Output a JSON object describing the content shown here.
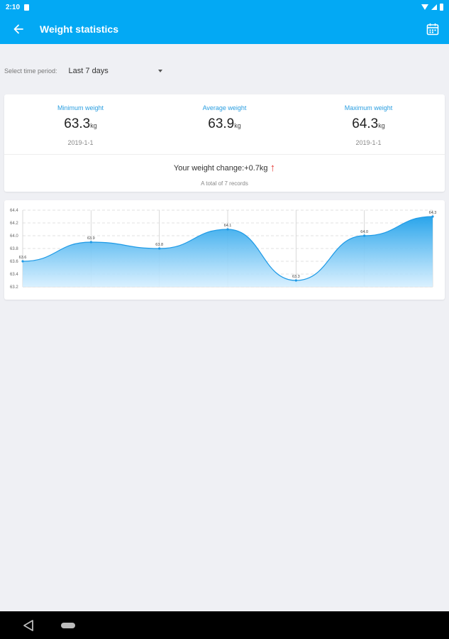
{
  "status_bar": {
    "time": "2:10"
  },
  "app_bar": {
    "title": "Weight statistics",
    "back_icon": "arrow-left-icon",
    "action_icon": "calendar-icon"
  },
  "period": {
    "label": "Select time period:",
    "value": "Last 7 days"
  },
  "stats": {
    "minimum": {
      "label": "Minimum weight",
      "value": "63.3",
      "unit": "kg",
      "date": "2019-1-1"
    },
    "average": {
      "label": "Average weight",
      "value": "63.9",
      "unit": "kg"
    },
    "maximum": {
      "label": "Maximum weight",
      "value": "64.3",
      "unit": "kg",
      "date": "2019-1-1"
    },
    "change_text": "Your weight change:+0.7kg",
    "change_direction_icon": "arrow-up-icon",
    "records_text": "A total of 7 records",
    "accent_color": "#2a9ee0",
    "up_color": "#e53935"
  },
  "chart_data": {
    "type": "area",
    "y_ticks": [
      "64.4",
      "64.2",
      "64.0",
      "63.8",
      "63.6",
      "63.4",
      "63.2"
    ],
    "ylim": [
      63.2,
      64.4
    ],
    "points": [
      {
        "y": 63.6,
        "label": "63.6"
      },
      {
        "y": 63.9,
        "label": "63.9"
      },
      {
        "y": 63.8,
        "label": "63.8"
      },
      {
        "y": 64.1,
        "label": "64.1"
      },
      {
        "y": 63.3,
        "label": "63.3"
      },
      {
        "y": 64.0,
        "label": "64.0"
      },
      {
        "y": 64.3,
        "label": "64.3"
      }
    ],
    "grid": true,
    "fill_color": "#29a8ec",
    "line_color": "#1e9ae6"
  }
}
